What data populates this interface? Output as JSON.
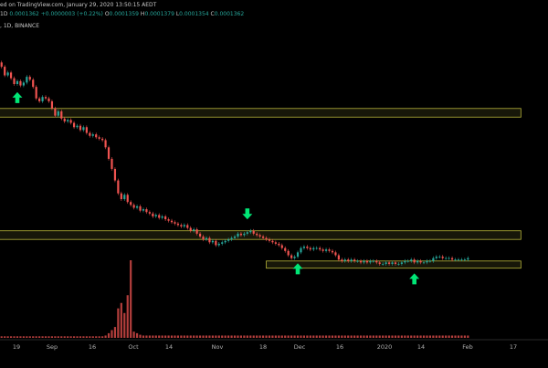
{
  "header": {
    "published_line": "ed on TradingView.com, January 29, 2020 13:50:15 AEDT",
    "interval": "1D",
    "price": "0.0001362",
    "change": "+0.0000003 (+0.22%)",
    "ohlc": [
      {
        "k": "O",
        "v": "0.0001359"
      },
      {
        "k": "H",
        "v": "0.0001379"
      },
      {
        "k": "L",
        "v": "0.0001354"
      },
      {
        "k": "C",
        "v": "0.0001362"
      }
    ],
    "exchange_line": ", 1D, BINANCE"
  },
  "chart_data": {
    "type": "candlestick",
    "x_labels": [
      "19",
      "Sep",
      "16",
      "Oct",
      "14",
      "Nov",
      "18",
      "Dec",
      "16",
      "2020",
      "14",
      "Feb",
      "17"
    ],
    "closes": [
      1.84,
      1.78,
      1.8,
      1.76,
      1.72,
      1.74,
      1.71,
      1.73,
      1.77,
      1.75,
      1.7,
      1.62,
      1.6,
      1.63,
      1.62,
      1.6,
      1.55,
      1.5,
      1.53,
      1.48,
      1.46,
      1.47,
      1.45,
      1.42,
      1.43,
      1.4,
      1.42,
      1.38,
      1.36,
      1.37,
      1.35,
      1.34,
      1.33,
      1.28,
      1.2,
      1.13,
      1.05,
      0.96,
      0.92,
      0.95,
      0.9,
      0.88,
      0.86,
      0.87,
      0.84,
      0.85,
      0.83,
      0.82,
      0.8,
      0.81,
      0.79,
      0.8,
      0.78,
      0.77,
      0.76,
      0.75,
      0.74,
      0.73,
      0.74,
      0.72,
      0.7,
      0.71,
      0.68,
      0.66,
      0.64,
      0.65,
      0.62,
      0.63,
      0.6,
      0.61,
      0.62,
      0.63,
      0.64,
      0.65,
      0.66,
      0.68,
      0.67,
      0.68,
      0.69,
      0.7,
      0.68,
      0.67,
      0.66,
      0.65,
      0.64,
      0.63,
      0.62,
      0.61,
      0.6,
      0.58,
      0.56,
      0.53,
      0.51,
      0.52,
      0.55,
      0.58,
      0.59,
      0.58,
      0.57,
      0.58,
      0.58,
      0.57,
      0.56,
      0.57,
      0.56,
      0.55,
      0.53,
      0.5,
      0.49,
      0.5,
      0.49,
      0.5,
      0.49,
      0.49,
      0.48,
      0.49,
      0.48,
      0.49,
      0.49,
      0.48,
      0.47,
      0.47,
      0.48,
      0.47,
      0.48,
      0.47,
      0.47,
      0.48,
      0.49,
      0.49,
      0.5,
      0.48,
      0.49,
      0.48,
      0.48,
      0.49,
      0.49,
      0.51,
      0.52,
      0.52,
      0.51,
      0.51,
      0.51,
      0.5,
      0.5,
      0.5,
      0.5,
      0.5,
      0.51
    ],
    "volumes": [
      0.02,
      0.02,
      0.02,
      0.02,
      0.02,
      0.02,
      0.02,
      0.02,
      0.02,
      0.02,
      0.02,
      0.02,
      0.02,
      0.02,
      0.02,
      0.02,
      0.02,
      0.02,
      0.02,
      0.02,
      0.02,
      0.02,
      0.02,
      0.02,
      0.02,
      0.02,
      0.02,
      0.02,
      0.02,
      0.02,
      0.02,
      0.02,
      0.02,
      0.03,
      0.06,
      0.1,
      0.14,
      0.38,
      0.45,
      0.32,
      0.55,
      1.0,
      0.08,
      0.06,
      0.04,
      0.03,
      0.03,
      0.03,
      0.03,
      0.03,
      0.03,
      0.03,
      0.03,
      0.03,
      0.03,
      0.03,
      0.03,
      0.03,
      0.03,
      0.03,
      0.03,
      0.03,
      0.03,
      0.03,
      0.03,
      0.03,
      0.03,
      0.03,
      0.03,
      0.03,
      0.03,
      0.03,
      0.03,
      0.03,
      0.03,
      0.03,
      0.03,
      0.03,
      0.03,
      0.03,
      0.03,
      0.03,
      0.03,
      0.03,
      0.03,
      0.03,
      0.03,
      0.03,
      0.03,
      0.03,
      0.03,
      0.03,
      0.03,
      0.03,
      0.03,
      0.03,
      0.03,
      0.03,
      0.03,
      0.03,
      0.03,
      0.03,
      0.03,
      0.03,
      0.03,
      0.03,
      0.03,
      0.03,
      0.03,
      0.03,
      0.03,
      0.03,
      0.03,
      0.03,
      0.03,
      0.03,
      0.03,
      0.03,
      0.03,
      0.03,
      0.03,
      0.03,
      0.03,
      0.03,
      0.03,
      0.03,
      0.03,
      0.03,
      0.03,
      0.03,
      0.03,
      0.03,
      0.03,
      0.03,
      0.03,
      0.03,
      0.03,
      0.03,
      0.03,
      0.03,
      0.03,
      0.03,
      0.03,
      0.03,
      0.03,
      0.03,
      0.03,
      0.03,
      0.03
    ],
    "zones": [
      {
        "name": "upper-zone",
        "from": 1.49,
        "to": 1.55,
        "start_bar": 0
      },
      {
        "name": "middle-zone",
        "from": 0.64,
        "to": 0.7,
        "start_bar": 0
      },
      {
        "name": "lower-zone",
        "from": 0.44,
        "to": 0.49,
        "start_bar": 84
      }
    ],
    "arrows": [
      {
        "bar": 5,
        "dir": "up"
      },
      {
        "bar": 78,
        "dir": "down"
      },
      {
        "bar": 94,
        "dir": "up"
      },
      {
        "bar": 131,
        "dir": "up"
      }
    ],
    "colors": {
      "up": "#26a69a",
      "down": "#ef5350",
      "zone_border": "#b7b43a",
      "zone_fill": "#2a2a10",
      "arrow": "#00e676",
      "volume": "#ef5350"
    }
  }
}
